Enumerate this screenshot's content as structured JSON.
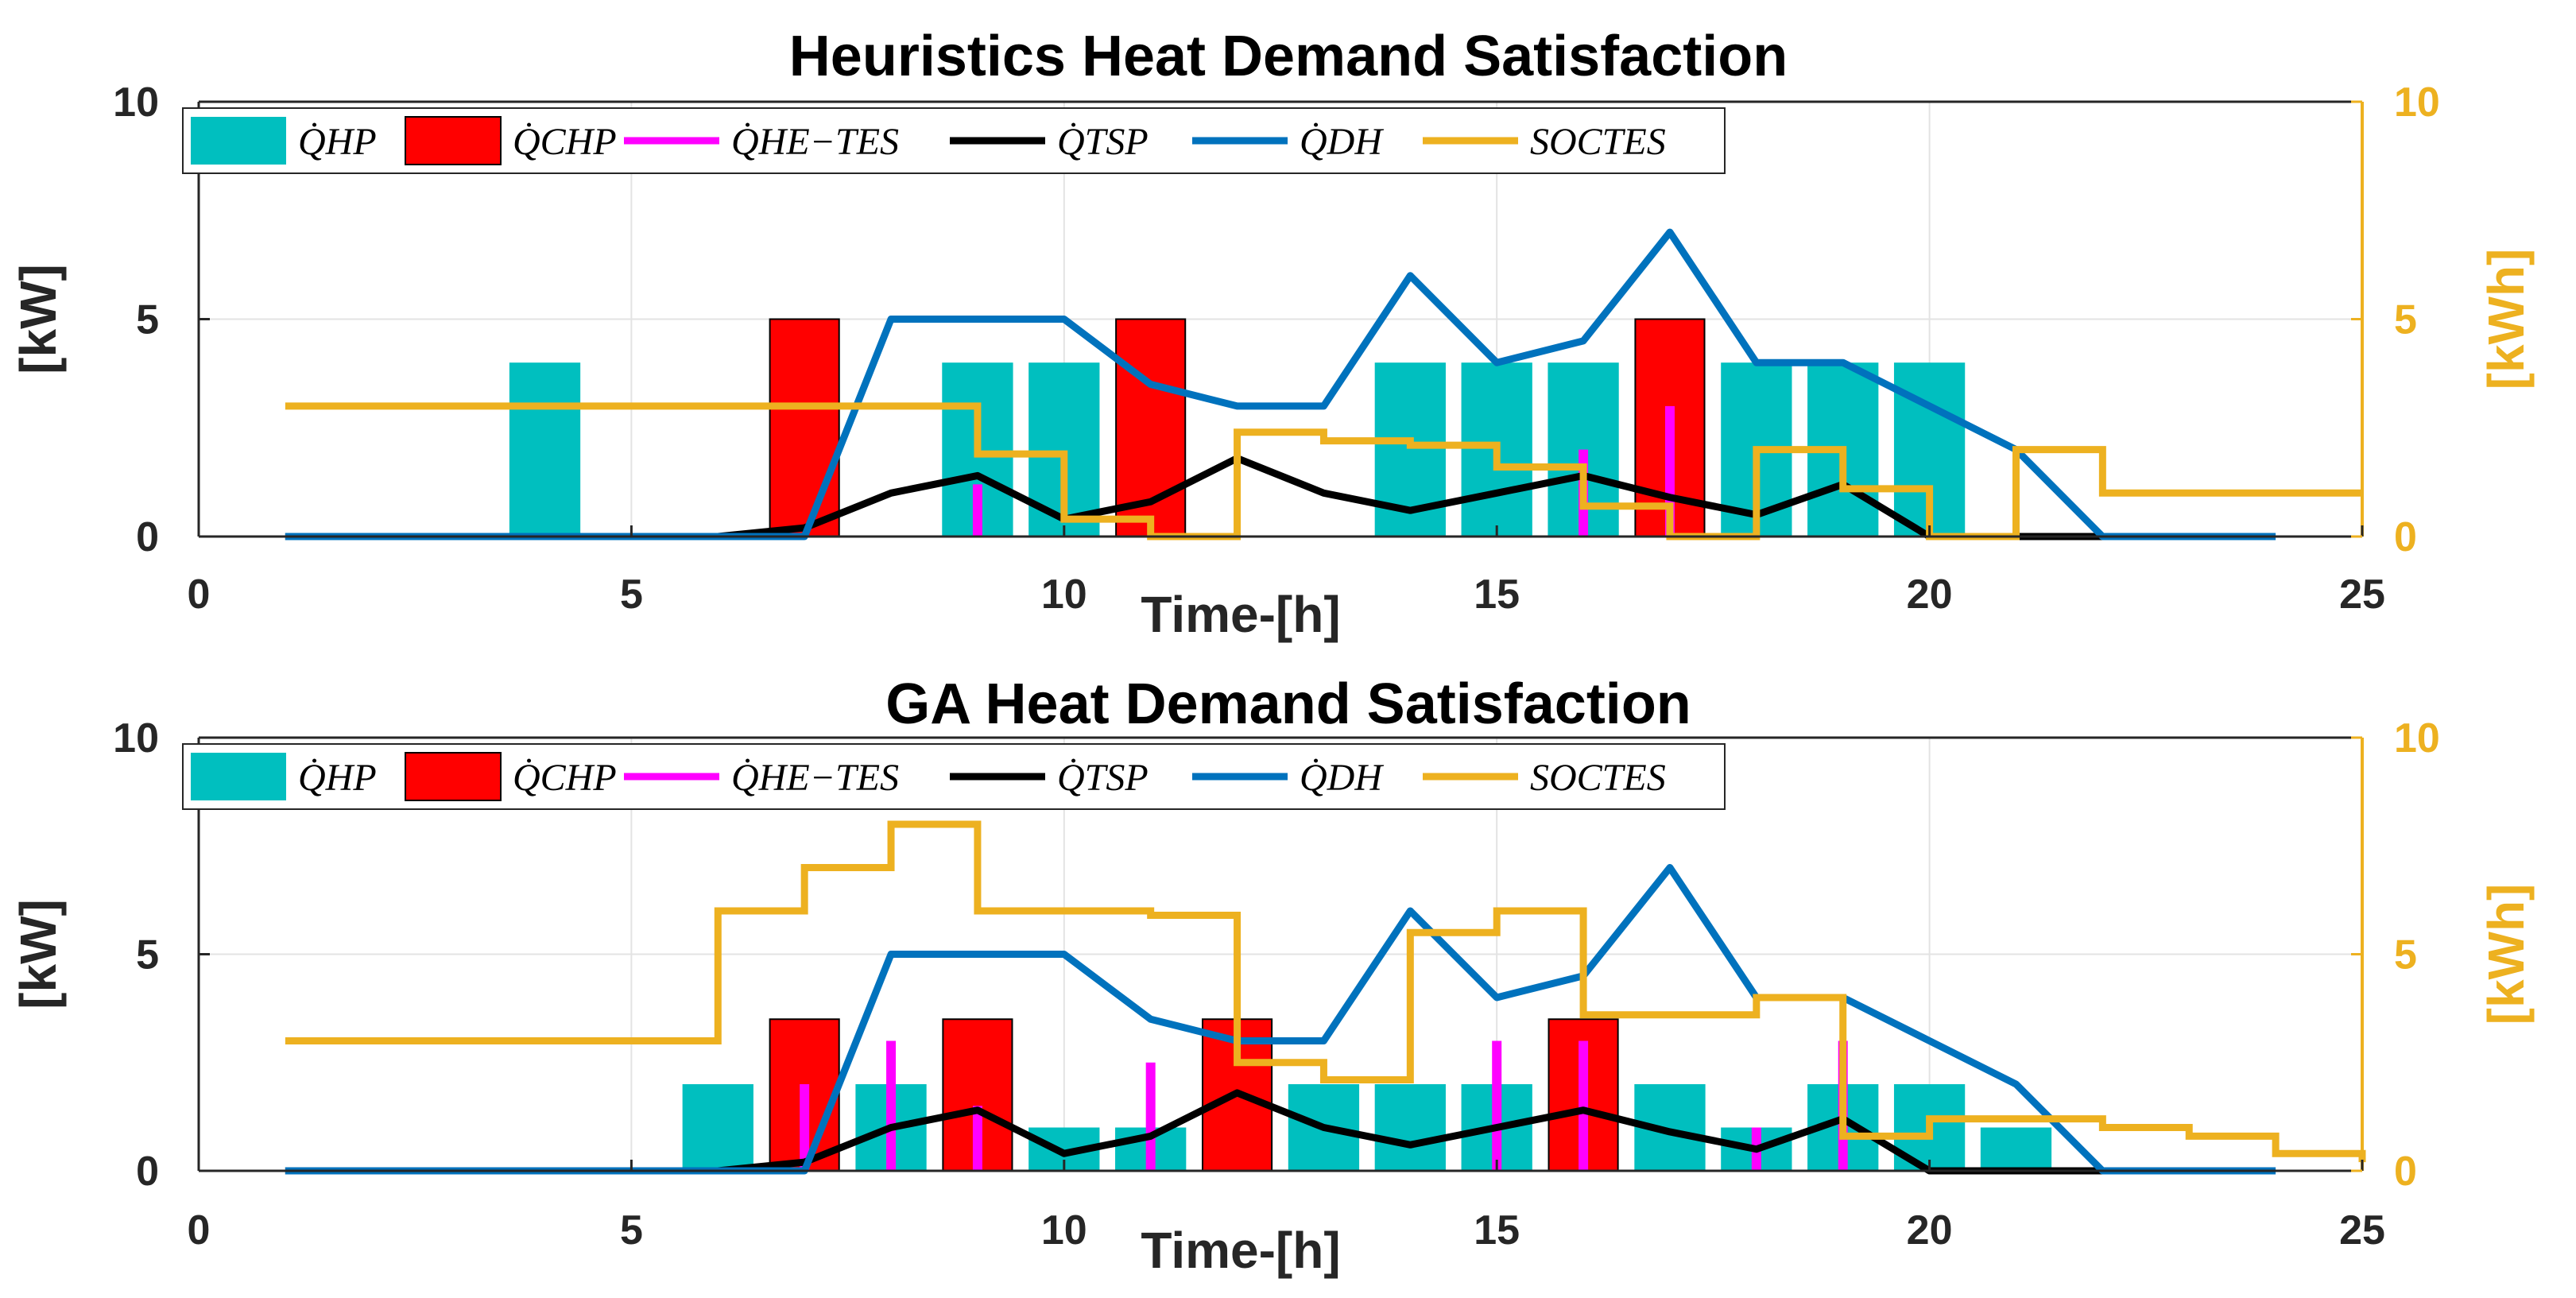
{
  "colors": {
    "hp": "#00bfbf",
    "chp": "#ff0000",
    "he_tes": "#ff00ff",
    "tsp": "#000000",
    "dh": "#0072bd",
    "soc": "#edb120"
  },
  "chart_data": [
    {
      "type": "bar",
      "title": "Heuristics Heat Demand Satisfaction",
      "xlabel": "Time-[h]",
      "ylabel": "[kW]",
      "ylabel_right": "[kWh]",
      "xlim": [
        0,
        25
      ],
      "ylim": [
        0,
        10
      ],
      "ylim_right": [
        0,
        10
      ],
      "xticks": [
        "0",
        "5",
        "10",
        "15",
        "20",
        "25"
      ],
      "yticks": [
        "0",
        "5",
        "10"
      ],
      "yticks_right": [
        "0",
        "5",
        "10"
      ],
      "grid": true,
      "legend": {
        "placement": "top-left",
        "entries": [
          {
            "key": "hp",
            "label": "Q̇HP"
          },
          {
            "key": "chp",
            "label": "Q̇CHP"
          },
          {
            "key": "he_tes",
            "label": "Q̇HE−TES"
          },
          {
            "key": "tsp",
            "label": "Q̇TSP"
          },
          {
            "key": "dh",
            "label": "Q̇DH"
          },
          {
            "key": "soc",
            "label": "SOCTES"
          }
        ]
      },
      "hp_bars": [
        {
          "x": 4,
          "y": 4
        },
        {
          "x": 9,
          "y": 4
        },
        {
          "x": 10,
          "y": 4
        },
        {
          "x": 14,
          "y": 4
        },
        {
          "x": 15,
          "y": 4
        },
        {
          "x": 16,
          "y": 4
        },
        {
          "x": 18,
          "y": 4
        },
        {
          "x": 19,
          "y": 4
        },
        {
          "x": 20,
          "y": 4
        }
      ],
      "chp_bars": [
        {
          "x": 7,
          "y": 5
        },
        {
          "x": 11,
          "y": 5
        },
        {
          "x": 17,
          "y": 5
        }
      ],
      "he_tes_bars": [
        {
          "x": 9,
          "y": 1.2
        },
        {
          "x": 16,
          "y": 2
        },
        {
          "x": 17,
          "y": 3
        }
      ],
      "tsp_line": {
        "x": [
          1,
          2,
          3,
          4,
          5,
          6,
          7,
          8,
          9,
          10,
          11,
          12,
          13,
          14,
          15,
          16,
          17,
          18,
          19,
          20,
          21,
          22
        ],
        "y": [
          0,
          0,
          0,
          0,
          0,
          0,
          0.2,
          1,
          1.4,
          0.4,
          0.8,
          1.8,
          1,
          0.6,
          1,
          1.4,
          0.9,
          0.5,
          1.2,
          0,
          0,
          0
        ]
      },
      "dh_line": {
        "x": [
          1,
          2,
          3,
          4,
          5,
          6,
          7,
          8,
          9,
          10,
          11,
          12,
          13,
          14,
          15,
          16,
          17,
          18,
          19,
          20,
          21,
          22,
          23,
          24
        ],
        "y": [
          0,
          0,
          0,
          0,
          0,
          0,
          0,
          5,
          5,
          5,
          3.5,
          3,
          3,
          6,
          4,
          4.5,
          7,
          4,
          4,
          3,
          2,
          0,
          0,
          0
        ]
      },
      "soc_steps": {
        "x": [
          1,
          2,
          3,
          4,
          5,
          6,
          7,
          8,
          9,
          10,
          11,
          12,
          13,
          14,
          15,
          16,
          17,
          18,
          19,
          20,
          21,
          22,
          23,
          24,
          25
        ],
        "y": [
          3,
          3,
          3,
          3,
          3,
          3,
          3,
          3,
          1.9,
          0.4,
          0,
          2.4,
          2.2,
          2.1,
          1.6,
          0.7,
          0,
          2,
          1.1,
          0,
          2,
          1,
          1,
          1,
          1
        ]
      }
    },
    {
      "type": "bar",
      "title": "GA Heat Demand Satisfaction",
      "xlabel": "Time-[h]",
      "ylabel": "[kW]",
      "ylabel_right": "[kWh]",
      "xlim": [
        0,
        25
      ],
      "ylim": [
        0,
        10
      ],
      "ylim_right": [
        0,
        10
      ],
      "xticks": [
        "0",
        "5",
        "10",
        "15",
        "20",
        "25"
      ],
      "yticks": [
        "0",
        "5",
        "10"
      ],
      "yticks_right": [
        "0",
        "5",
        "10"
      ],
      "grid": true,
      "legend": {
        "placement": "top-left",
        "entries": [
          {
            "key": "hp",
            "label": "Q̇HP"
          },
          {
            "key": "chp",
            "label": "Q̇CHP"
          },
          {
            "key": "he_tes",
            "label": "Q̇HE−TES"
          },
          {
            "key": "tsp",
            "label": "Q̇TSP"
          },
          {
            "key": "dh",
            "label": "Q̇DH"
          },
          {
            "key": "soc",
            "label": "SOCTES"
          }
        ]
      },
      "hp_bars": [
        {
          "x": 6,
          "y": 2
        },
        {
          "x": 8,
          "y": 2
        },
        {
          "x": 10,
          "y": 1
        },
        {
          "x": 11,
          "y": 1
        },
        {
          "x": 13,
          "y": 2
        },
        {
          "x": 14,
          "y": 2
        },
        {
          "x": 15,
          "y": 2
        },
        {
          "x": 17,
          "y": 2
        },
        {
          "x": 18,
          "y": 1
        },
        {
          "x": 19,
          "y": 2
        },
        {
          "x": 20,
          "y": 2
        },
        {
          "x": 21,
          "y": 1
        }
      ],
      "chp_bars": [
        {
          "x": 7,
          "y": 3.5
        },
        {
          "x": 9,
          "y": 3.5
        },
        {
          "x": 12,
          "y": 3.5
        },
        {
          "x": 16,
          "y": 3.5
        }
      ],
      "he_tes_bars": [
        {
          "x": 7,
          "y": 2
        },
        {
          "x": 8,
          "y": 3
        },
        {
          "x": 9,
          "y": 1.5
        },
        {
          "x": 11,
          "y": 2.5
        },
        {
          "x": 15,
          "y": 3
        },
        {
          "x": 16,
          "y": 3
        },
        {
          "x": 18,
          "y": 1
        },
        {
          "x": 19,
          "y": 3
        }
      ],
      "tsp_line": {
        "x": [
          1,
          2,
          3,
          4,
          5,
          6,
          7,
          8,
          9,
          10,
          11,
          12,
          13,
          14,
          15,
          16,
          17,
          18,
          19,
          20,
          21,
          22
        ],
        "y": [
          0,
          0,
          0,
          0,
          0,
          0,
          0.2,
          1,
          1.4,
          0.4,
          0.8,
          1.8,
          1,
          0.6,
          1,
          1.4,
          0.9,
          0.5,
          1.2,
          0,
          0,
          0
        ]
      },
      "dh_line": {
        "x": [
          1,
          2,
          3,
          4,
          5,
          6,
          7,
          8,
          9,
          10,
          11,
          12,
          13,
          14,
          15,
          16,
          17,
          18,
          19,
          20,
          21,
          22,
          23,
          24
        ],
        "y": [
          0,
          0,
          0,
          0,
          0,
          0,
          0,
          5,
          5,
          5,
          3.5,
          3,
          3,
          6,
          4,
          4.5,
          7,
          4,
          4,
          3,
          2,
          0,
          0,
          0
        ]
      },
      "soc_steps": {
        "x": [
          1,
          2,
          3,
          4,
          5,
          6,
          7,
          8,
          9,
          10,
          11,
          12,
          13,
          14,
          15,
          16,
          17,
          18,
          19,
          20,
          21,
          22,
          23,
          24,
          25
        ],
        "y": [
          3,
          3,
          3,
          3,
          3,
          6,
          7,
          8,
          6,
          6,
          5.9,
          2.5,
          2.1,
          5.5,
          6,
          3.6,
          3.6,
          4,
          0.8,
          1.2,
          1.2,
          1,
          0.8,
          0.4,
          0.2
        ]
      }
    }
  ]
}
